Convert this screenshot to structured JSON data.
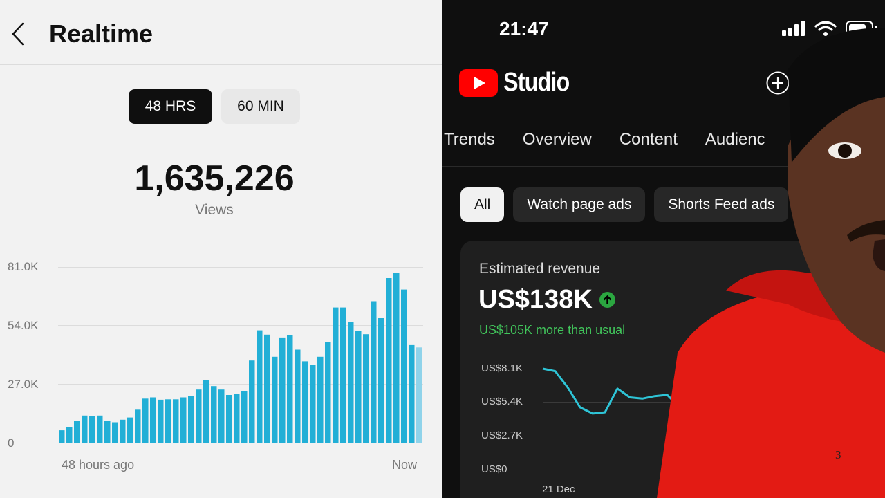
{
  "left": {
    "title": "Realtime",
    "toggle": {
      "active": "48 HRS",
      "inactive": "60 MIN"
    },
    "views_value": "1,635,226",
    "views_label": "Views",
    "yticks": [
      "81.0K",
      "54.0K",
      "27.0K",
      "0"
    ],
    "x_start": "48 hours ago",
    "x_end": "Now"
  },
  "right": {
    "time": "21:47",
    "logo_text": "Studio",
    "tabs": [
      "Trends",
      "Overview",
      "Content",
      "Audienc"
    ],
    "chips": [
      "All",
      "Watch page ads",
      "Shorts Feed ads"
    ],
    "card": {
      "title": "Estimated revenue",
      "value": "US$138K",
      "sub": "US$105K more than usual",
      "yticks": [
        "US$8.1K",
        "US$5.4K",
        "US$2.7K",
        "US$0"
      ],
      "x_start": "21 Dec"
    }
  },
  "overlay_digit": "3",
  "chart_data": [
    {
      "type": "bar",
      "title": "",
      "xlabel": "",
      "ylabel": "",
      "ylim": [
        0,
        81000
      ],
      "x_range": [
        "48 hours ago",
        "Now"
      ],
      "values": [
        5700,
        7200,
        10000,
        12500,
        12200,
        12500,
        10000,
        9400,
        10600,
        11600,
        15200,
        20300,
        20900,
        19800,
        20000,
        20000,
        20900,
        21700,
        24500,
        28800,
        26100,
        24500,
        22000,
        22500,
        23700,
        37900,
        51800,
        49800,
        39600,
        48500,
        49500,
        42900,
        37500,
        35900,
        39600,
        46400,
        62300,
        62300,
        55700,
        51500,
        50000,
        65200,
        57400,
        75900,
        78300,
        70600,
        45000,
        43900
      ]
    },
    {
      "type": "line",
      "title": "Estimated revenue",
      "ylim": [
        0,
        8100
      ],
      "x_start": "21 Dec",
      "values": [
        8100,
        7900,
        6600,
        5000,
        4500,
        4600,
        6500,
        5800,
        5700,
        5900,
        6000,
        5000
      ]
    }
  ]
}
